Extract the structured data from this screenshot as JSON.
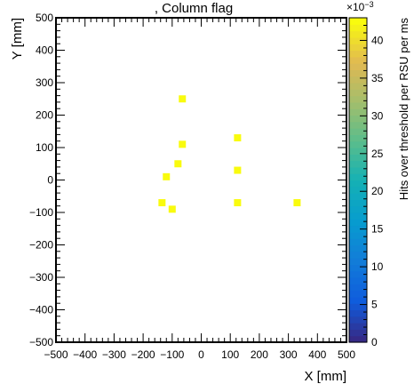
{
  "chart_data": {
    "type": "scatter",
    "title": ", Column flag",
    "xlabel": "X [mm]",
    "ylabel": "Y [mm]",
    "xlim": [
      -500,
      500
    ],
    "ylim": [
      -500,
      500
    ],
    "x_ticks": [
      -500,
      -400,
      -300,
      -200,
      -100,
      0,
      100,
      200,
      300,
      400,
      500
    ],
    "x_tick_labels": [
      "−500",
      "−400",
      "−300",
      "−200",
      "−100",
      "0",
      "100",
      "200",
      "300",
      "400",
      "500"
    ],
    "y_ticks": [
      -500,
      -400,
      -300,
      -200,
      -100,
      0,
      100,
      200,
      300,
      400,
      500
    ],
    "y_tick_labels": [
      "−500",
      "−400",
      "−300",
      "−200",
      "−100",
      "0",
      "100",
      "200",
      "300",
      "400",
      "500"
    ],
    "grid": false,
    "colorbar": {
      "label": "Hits over threshold per RSU per ms",
      "range": [
        0,
        43
      ],
      "multiplier": "×10",
      "multiplier_exp": "−3",
      "ticks": [
        0,
        5,
        10,
        15,
        20,
        25,
        30,
        35,
        40
      ],
      "tick_labels": [
        "0",
        "5",
        "10",
        "15",
        "20",
        "25",
        "30",
        "35",
        "40"
      ]
    },
    "marker_color": "#f9fb0e",
    "points": [
      {
        "x": -65,
        "y": 250,
        "value": 43
      },
      {
        "x": -65,
        "y": 110,
        "value": 43
      },
      {
        "x": -80,
        "y": 50,
        "value": 43
      },
      {
        "x": -120,
        "y": 10,
        "value": 43
      },
      {
        "x": -135,
        "y": -70,
        "value": 43
      },
      {
        "x": -100,
        "y": -90,
        "value": 43
      },
      {
        "x": 125,
        "y": 130,
        "value": 43
      },
      {
        "x": 125,
        "y": 30,
        "value": 43
      },
      {
        "x": 125,
        "y": -70,
        "value": 43
      },
      {
        "x": 330,
        "y": -70,
        "value": 43
      }
    ]
  }
}
